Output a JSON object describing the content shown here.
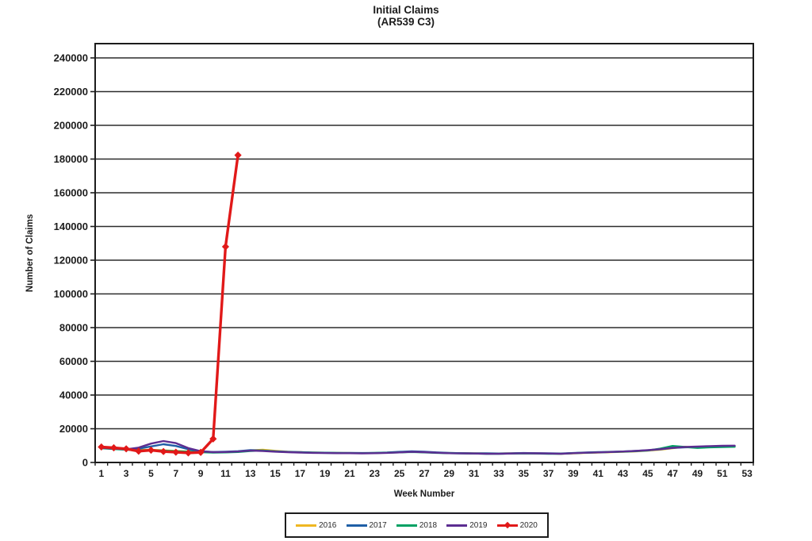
{
  "chart": {
    "title_line1": "Initial Claims",
    "title_line2": "(AR539 C3)",
    "xlabel": "Week Number",
    "ylabel": "Number of Claims"
  },
  "chart_data": {
    "type": "line",
    "title": "Initial Claims (AR539 C3)",
    "xlabel": "Week Number",
    "ylabel": "Number of Claims",
    "x_unit": "week number, value index 0 = week 1",
    "xlim": [
      1,
      53
    ],
    "x_tick_labels": [
      1,
      3,
      5,
      7,
      9,
      11,
      13,
      15,
      17,
      19,
      21,
      23,
      25,
      27,
      29,
      31,
      33,
      35,
      37,
      39,
      41,
      43,
      45,
      47,
      49,
      51,
      53
    ],
    "ylim": [
      0,
      240000
    ],
    "y_ticks": [
      0,
      20000,
      40000,
      60000,
      80000,
      100000,
      120000,
      140000,
      160000,
      180000,
      200000,
      220000,
      240000
    ],
    "grid": "horizontal",
    "legend_position": "bottom-center",
    "axis_color": "#1c1c1c",
    "gridline_color": "#2b2b2b",
    "series": [
      {
        "name": "2016",
        "color": "#EFB722",
        "marker": "none",
        "values": [
          8800,
          8300,
          7900,
          7500,
          7600,
          7200,
          6800,
          6500,
          6200,
          6000,
          6100,
          6400,
          7200,
          7600,
          6900,
          6400,
          6100,
          5900,
          5800,
          5700,
          5600,
          5500,
          5600,
          5800,
          6100,
          6300,
          6100,
          5800,
          5600,
          5500,
          5400,
          5300,
          5300,
          5400,
          5500,
          5400,
          5300,
          5200,
          5400,
          5700,
          5900,
          6100,
          6300,
          6600,
          7000,
          7600,
          8400,
          9300,
          8800,
          9100,
          9300,
          9400
        ]
      },
      {
        "name": "2017",
        "color": "#1F5FA6",
        "marker": "none",
        "values": [
          8600,
          8100,
          7700,
          8200,
          9500,
          10800,
          9800,
          7800,
          6600,
          6200,
          6400,
          6700,
          7300,
          7000,
          6600,
          6300,
          6100,
          5900,
          5800,
          5700,
          5700,
          5600,
          5700,
          5900,
          6300,
          6600,
          6400,
          6000,
          5700,
          5500,
          5400,
          5400,
          5300,
          5400,
          5600,
          5500,
          5400,
          5300,
          5600,
          5900,
          6100,
          6300,
          6500,
          6800,
          7200,
          7800,
          8600,
          9000,
          9200,
          9500,
          9700,
          9800
        ]
      },
      {
        "name": "2018",
        "color": "#00A163",
        "marker": "none",
        "values": [
          8400,
          8000,
          7600,
          7200,
          7300,
          7000,
          6700,
          6400,
          6100,
          5900,
          6000,
          6200,
          6800,
          7100,
          6500,
          6200,
          6000,
          5800,
          5700,
          5600,
          5500,
          5500,
          5600,
          5800,
          6000,
          6200,
          6000,
          5700,
          5500,
          5400,
          5300,
          5200,
          5200,
          5300,
          5400,
          5300,
          5200,
          5200,
          5500,
          5800,
          6000,
          6200,
          6400,
          6700,
          7100,
          8200,
          9800,
          9200,
          8600,
          9000,
          9200,
          9300
        ]
      },
      {
        "name": "2019",
        "color": "#5C2D91",
        "marker": "none",
        "values": [
          8700,
          8200,
          7800,
          8800,
          11200,
          12700,
          11500,
          8500,
          6700,
          6100,
          6200,
          6500,
          7000,
          6800,
          6400,
          6100,
          5900,
          5700,
          5600,
          5500,
          5500,
          5400,
          5500,
          5700,
          6000,
          6300,
          6100,
          5800,
          5500,
          5400,
          5300,
          5200,
          5200,
          5300,
          5500,
          5400,
          5300,
          5200,
          5500,
          5800,
          6000,
          6200,
          6500,
          6800,
          7300,
          7900,
          8700,
          9200,
          9400,
          9700,
          9900,
          10000
        ]
      },
      {
        "name": "2020",
        "color": "#E11919",
        "marker": "diamond",
        "values": [
          9200,
          8700,
          8100,
          6700,
          7300,
          6500,
          6100,
          5700,
          6000,
          14000,
          128000,
          182300
        ]
      }
    ]
  }
}
